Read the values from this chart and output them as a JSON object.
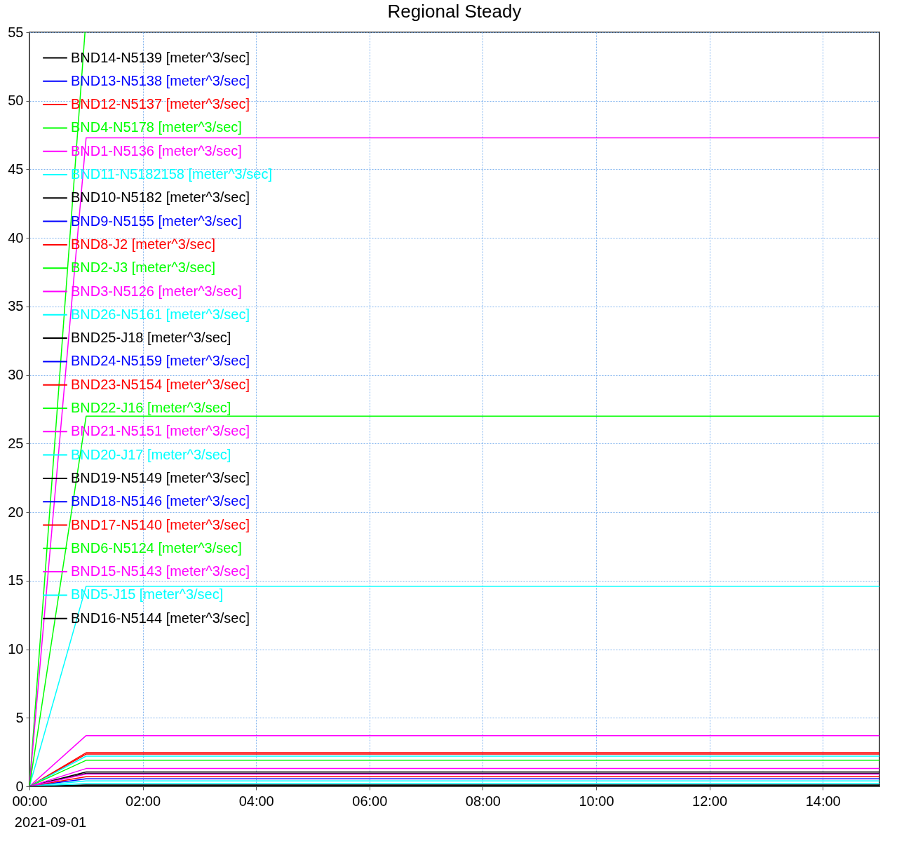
{
  "chart_data": {
    "type": "line",
    "title": "Regional Steady",
    "annotations": [
      "2021-09-01"
    ],
    "xlim": [
      0,
      15
    ],
    "xticks": [
      {
        "value": 0,
        "label": "00:00"
      },
      {
        "value": 2,
        "label": "02:00"
      },
      {
        "value": 4,
        "label": "04:00"
      },
      {
        "value": 6,
        "label": "06:00"
      },
      {
        "value": 8,
        "label": "08:00"
      },
      {
        "value": 10,
        "label": "10:00"
      },
      {
        "value": 12,
        "label": "12:00"
      },
      {
        "value": 14,
        "label": "14:00"
      }
    ],
    "ylim": [
      0,
      55
    ],
    "yticks": [
      0,
      5,
      10,
      15,
      20,
      25,
      30,
      35,
      40,
      45,
      50,
      55
    ],
    "grid": true,
    "legend": "top left",
    "series": [
      {
        "name": "BND14-N5139 [meter^3/sec]",
        "color": "#000000",
        "x": [
          0,
          1,
          15
        ],
        "values": [
          0,
          1.05,
          1.05
        ]
      },
      {
        "name": "BND13-N5138 [meter^3/sec]",
        "color": "#0000ff",
        "x": [
          0,
          1,
          15
        ],
        "values": [
          0,
          0.55,
          0.55
        ]
      },
      {
        "name": "BND12-N5137 [meter^3/sec]",
        "color": "#ff0000",
        "x": [
          0,
          1,
          15
        ],
        "values": [
          0,
          2.45,
          2.45
        ]
      },
      {
        "name": "BND4-N5178 [meter^3/sec]",
        "color": "#00ff00",
        "x": [
          0,
          0.98
        ],
        "values": [
          0,
          55
        ]
      },
      {
        "name": "BND1-N5136 [meter^3/sec]",
        "color": "#ff00ff",
        "x": [
          0,
          1,
          15
        ],
        "values": [
          0,
          47.3,
          47.3
        ]
      },
      {
        "name": "BND11-N5182158 [meter^3/sec]",
        "color": "#00ffff",
        "x": [
          0,
          1,
          15
        ],
        "values": [
          0,
          14.6,
          14.6
        ]
      },
      {
        "name": "BND10-N5182 [meter^3/sec]",
        "color": "#000000",
        "x": [
          0,
          1,
          15
        ],
        "values": [
          0,
          0.95,
          0.95
        ]
      },
      {
        "name": "BND9-N5155 [meter^3/sec]",
        "color": "#0000ff",
        "values": [
          null,
          null,
          null
        ]
      },
      {
        "name": "BND8-J2 [meter^3/sec]",
        "color": "#ff0000",
        "x": [
          0,
          1,
          15
        ],
        "values": [
          0,
          2.35,
          2.35
        ]
      },
      {
        "name": "BND2-J3 [meter^3/sec]",
        "color": "#00ff00",
        "x": [
          0,
          1,
          15
        ],
        "values": [
          0,
          27,
          27
        ]
      },
      {
        "name": "BND3-N5126 [meter^3/sec]",
        "color": "#ff00ff",
        "x": [
          0,
          1,
          15
        ],
        "values": [
          0,
          3.7,
          3.7
        ]
      },
      {
        "name": "BND26-N5161 [meter^3/sec]",
        "color": "#00ffff",
        "x": [
          0,
          1,
          15
        ],
        "values": [
          0,
          2.2,
          2.2
        ]
      },
      {
        "name": "BND25-J18 [meter^3/sec]",
        "color": "#000000",
        "x": [
          0,
          1,
          15
        ],
        "values": [
          0,
          0.1,
          0.1
        ]
      },
      {
        "name": "BND24-N5159 [meter^3/sec]",
        "color": "#0000ff",
        "values": [
          null,
          null,
          null
        ]
      },
      {
        "name": "BND23-N5154 [meter^3/sec]",
        "color": "#ff0000",
        "x": [
          0,
          1,
          15
        ],
        "values": [
          0,
          0.7,
          0.7
        ]
      },
      {
        "name": "BND22-J16 [meter^3/sec]",
        "color": "#00ff00",
        "x": [
          0,
          1,
          15
        ],
        "values": [
          0,
          1.9,
          1.9
        ]
      },
      {
        "name": "BND21-N5151 [meter^3/sec]",
        "color": "#ff00ff",
        "x": [
          0,
          1,
          15
        ],
        "values": [
          0,
          1.3,
          1.3
        ]
      },
      {
        "name": "BND20-J17 [meter^3/sec]",
        "color": "#00ffff",
        "x": [
          0,
          1,
          15
        ],
        "values": [
          0,
          0.4,
          0.4
        ]
      },
      {
        "name": "BND19-N5149 [meter^3/sec]",
        "color": "#000000",
        "values": [
          null,
          null,
          null
        ]
      },
      {
        "name": "BND18-N5146 [meter^3/sec]",
        "color": "#0000ff",
        "values": [
          null,
          null,
          null
        ]
      },
      {
        "name": "BND17-N5140 [meter^3/sec]",
        "color": "#ff0000",
        "values": [
          null,
          null,
          null
        ]
      },
      {
        "name": "BND6-N5124 [meter^3/sec]",
        "color": "#00ff00",
        "values": [
          null,
          null,
          null
        ]
      },
      {
        "name": "BND15-N5143 [meter^3/sec]",
        "color": "#ff00ff",
        "x": [
          0,
          1,
          15
        ],
        "values": [
          0,
          0.9,
          0.9
        ]
      },
      {
        "name": "BND5-J15 [meter^3/sec]",
        "color": "#00ffff",
        "x": [
          0,
          1,
          15
        ],
        "values": [
          0,
          0.2,
          0.2
        ]
      },
      {
        "name": "BND16-N5144 [meter^3/sec]",
        "color": "#000000",
        "x": [
          0,
          1,
          15
        ],
        "values": [
          0,
          0.05,
          0.05
        ]
      }
    ]
  }
}
